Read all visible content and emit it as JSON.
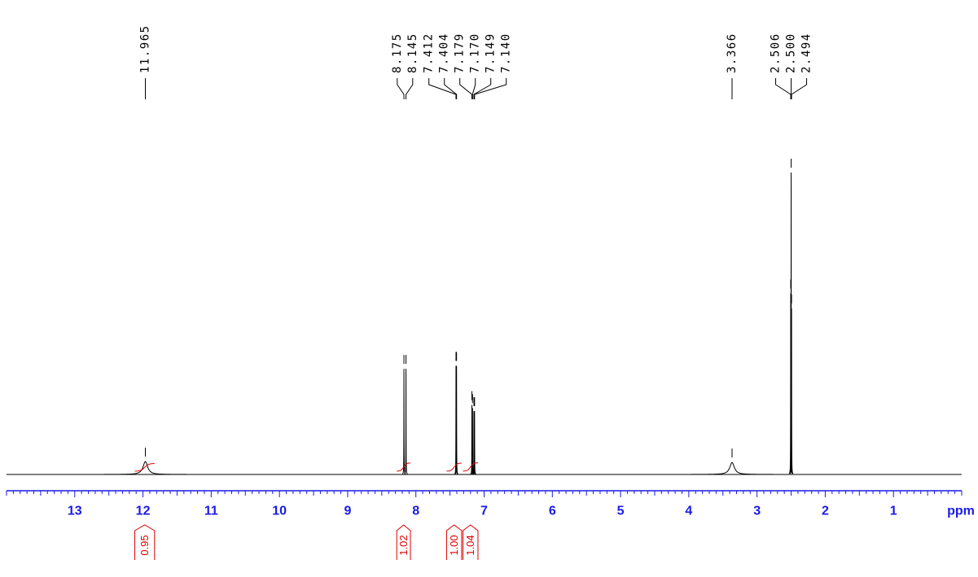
{
  "chart_data": {
    "type": "spectrum",
    "x_label": "ppm",
    "xlim": [
      14,
      0
    ],
    "xticks": [
      13,
      12,
      11,
      10,
      9,
      8,
      7,
      6,
      5,
      4,
      3,
      2,
      1
    ],
    "ylim": [
      0,
      100
    ],
    "color": "#000000",
    "axis_color": "#1a1ae6",
    "integral_color": "#e00000",
    "peaks": {
      "x": [
        11.965,
        8.175,
        8.145,
        7.412,
        7.404,
        7.179,
        {
          "value": 7.17,
          "label": "7.170"
        },
        7.149,
        {
          "value": 7.14,
          "label": "7.140"
        },
        3.366,
        2.506,
        {
          "value": 2.5,
          "label": "2.500"
        },
        2.494
      ],
      "values": [
        4.3,
        35,
        35,
        36,
        36,
        23,
        22,
        21,
        21,
        4,
        60,
        100,
        55
      ],
      "widths": [
        0.04,
        0.0015,
        0.0015,
        0.0015,
        0.0015,
        0.0015,
        0.0015,
        0.0015,
        0.0015,
        0.04,
        0.0015,
        0.0015,
        0.0015
      ]
    },
    "integrals": {
      "ranges": [
        [
          12.12,
          11.83
        ],
        [
          8.28,
          8.08
        ],
        [
          7.55,
          7.33
        ],
        [
          7.31,
          7.09
        ]
      ],
      "values": [
        0.95,
        1.02,
        1,
        1.04
      ],
      "value_labels": [
        "0.95",
        "1.02",
        "1.00",
        "1.04"
      ]
    }
  }
}
